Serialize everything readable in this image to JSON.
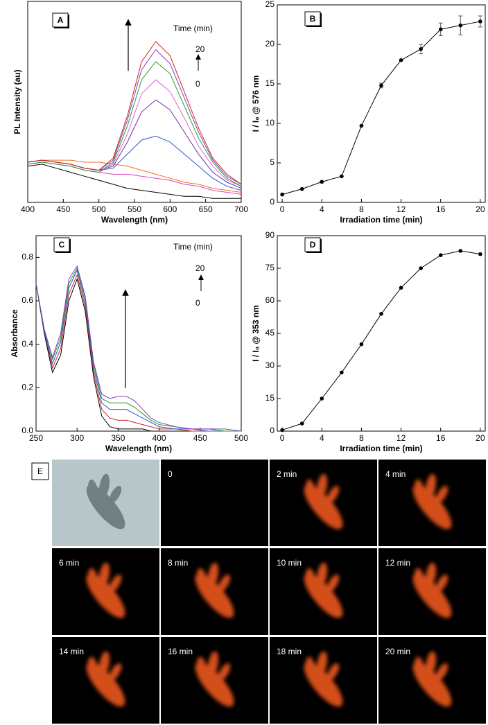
{
  "chart_data": [
    {
      "type": "line",
      "panel_label": "A",
      "y_label": "PL Intensity (au)",
      "x_label": "Wavelength (nm)",
      "annotations": [
        "Time (min)",
        "20",
        "0"
      ],
      "x": [
        400,
        420,
        440,
        460,
        480,
        500,
        520,
        540,
        560,
        580,
        600,
        620,
        640,
        660,
        680,
        700
      ],
      "xlim": [
        400,
        700
      ],
      "xticks": [
        400,
        450,
        500,
        550,
        600,
        650,
        700
      ],
      "ylim": [
        0,
        100
      ],
      "series": [
        {
          "color": "#000000",
          "values": [
            18,
            19,
            17,
            15,
            13,
            11,
            9,
            7,
            6,
            5,
            4,
            3,
            3,
            2,
            2,
            2
          ]
        },
        {
          "color": "#f07020",
          "values": [
            20,
            21,
            21,
            21,
            20,
            20,
            19,
            18,
            16,
            14,
            12,
            10,
            9,
            7,
            6,
            5
          ]
        },
        {
          "color": "#e040c0",
          "values": [
            19,
            20,
            19,
            18,
            16,
            15,
            14,
            14,
            13,
            12,
            11,
            9,
            8,
            6,
            5,
            4
          ]
        },
        {
          "color": "#3050d0",
          "values": [
            20,
            21,
            20,
            19,
            17,
            16,
            17,
            24,
            31,
            33,
            30,
            24,
            18,
            12,
            8,
            6
          ]
        },
        {
          "color": "#7030a0",
          "values": [
            20,
            21,
            20,
            19,
            17,
            16,
            18,
            30,
            45,
            51,
            46,
            35,
            24,
            15,
            10,
            7
          ]
        },
        {
          "color": "#e060e0",
          "values": [
            19,
            20,
            19,
            18,
            16,
            15,
            19,
            34,
            54,
            61,
            55,
            42,
            28,
            18,
            11,
            8
          ]
        },
        {
          "color": "#20a020",
          "values": [
            19,
            20,
            19,
            18,
            16,
            15,
            20,
            38,
            61,
            70,
            64,
            48,
            32,
            20,
            12,
            8
          ]
        },
        {
          "color": "#8040c0",
          "values": [
            20,
            21,
            20,
            19,
            17,
            16,
            21,
            41,
            66,
            76,
            69,
            52,
            35,
            21,
            13,
            9
          ]
        },
        {
          "color": "#d02020",
          "values": [
            20,
            21,
            20,
            19,
            17,
            16,
            22,
            43,
            70,
            80,
            73,
            55,
            37,
            22,
            14,
            9
          ]
        }
      ]
    },
    {
      "type": "line",
      "panel_label": "B",
      "y_label": "I / I₀ @ 576 nm",
      "x_label": "Irradiation time (min)",
      "x": [
        0,
        2,
        4,
        6,
        8,
        10,
        12,
        14,
        16,
        18,
        20
      ],
      "values": [
        1,
        1.7,
        2.6,
        3.3,
        9.7,
        14.8,
        18,
        19.4,
        21.9,
        22.4,
        22.9
      ],
      "errors": [
        0,
        0,
        0,
        0,
        0,
        0.3,
        0,
        0.6,
        0.8,
        1.2,
        0.7
      ],
      "color": "#000000",
      "xlim": [
        -0.5,
        20.5
      ],
      "xticks": [
        0,
        4,
        8,
        12,
        16,
        20
      ],
      "ylim": [
        0,
        25
      ],
      "yticks": [
        0,
        5,
        10,
        15,
        20,
        25
      ]
    },
    {
      "type": "line",
      "panel_label": "C",
      "y_label": "Absorbance",
      "x_label": "Wavelength (nm)",
      "annotations": [
        "Time (min)",
        "20",
        "0"
      ],
      "x": [
        250,
        260,
        270,
        280,
        290,
        300,
        310,
        320,
        330,
        340,
        350,
        360,
        370,
        380,
        390,
        400,
        420,
        440,
        460,
        480,
        500
      ],
      "xlim": [
        250,
        500
      ],
      "xticks": [
        250,
        300,
        350,
        400,
        450,
        500
      ],
      "ylim": [
        0,
        0.9
      ],
      "yticks": [
        {
          "value": 0,
          "label": "0.0"
        },
        0.2,
        0.4,
        0.6,
        0.8
      ],
      "series": [
        {
          "color": "#000000",
          "values": [
            0.68,
            0.45,
            0.27,
            0.35,
            0.6,
            0.7,
            0.55,
            0.25,
            0.07,
            0.02,
            0.01,
            0.01,
            0.01,
            0.01,
            0,
            0,
            0,
            0,
            0,
            0,
            0
          ]
        },
        {
          "color": "#d02020",
          "values": [
            0.68,
            0.46,
            0.29,
            0.38,
            0.63,
            0.72,
            0.57,
            0.27,
            0.1,
            0.06,
            0.05,
            0.05,
            0.04,
            0.03,
            0.02,
            0.01,
            0.01,
            0,
            0,
            0,
            0
          ]
        },
        {
          "color": "#3050d0",
          "values": [
            0.68,
            0.46,
            0.31,
            0.41,
            0.66,
            0.74,
            0.59,
            0.29,
            0.13,
            0.1,
            0.1,
            0.1,
            0.08,
            0.06,
            0.04,
            0.02,
            0.01,
            0.01,
            0,
            0,
            0
          ]
        },
        {
          "color": "#20a020",
          "values": [
            0.68,
            0.47,
            0.33,
            0.43,
            0.68,
            0.75,
            0.61,
            0.31,
            0.15,
            0.13,
            0.13,
            0.13,
            0.11,
            0.08,
            0.05,
            0.03,
            0.02,
            0.01,
            0.01,
            0,
            0
          ]
        },
        {
          "color": "#8040c0",
          "values": [
            0.68,
            0.47,
            0.34,
            0.45,
            0.7,
            0.76,
            0.62,
            0.32,
            0.17,
            0.15,
            0.16,
            0.16,
            0.14,
            0.1,
            0.06,
            0.04,
            0.02,
            0.01,
            0.01,
            0.01,
            0
          ]
        }
      ]
    },
    {
      "type": "line",
      "panel_label": "D",
      "y_label": "I / I₀ @ 353 nm",
      "x_label": "Irradiation time (min)",
      "x": [
        0,
        2,
        4,
        6,
        8,
        10,
        12,
        14,
        16,
        18,
        20
      ],
      "values": [
        0.5,
        3.5,
        15,
        27,
        40,
        54,
        66,
        75,
        81,
        83,
        81.5
      ],
      "color": "#000000",
      "xlim": [
        -0.5,
        20.5
      ],
      "xticks": [
        0,
        4,
        8,
        12,
        16,
        20
      ],
      "ylim": [
        0,
        90
      ],
      "yticks": [
        0,
        15,
        30,
        45,
        60,
        75,
        90
      ]
    },
    {
      "type": "image",
      "panel_label": "E",
      "frame_labels": [
        "0",
        "2 min",
        "4 min",
        "6 min",
        "8 min",
        "10 min",
        "12 min",
        "14 min",
        "16 min",
        "18 min",
        "20 min"
      ]
    }
  ]
}
